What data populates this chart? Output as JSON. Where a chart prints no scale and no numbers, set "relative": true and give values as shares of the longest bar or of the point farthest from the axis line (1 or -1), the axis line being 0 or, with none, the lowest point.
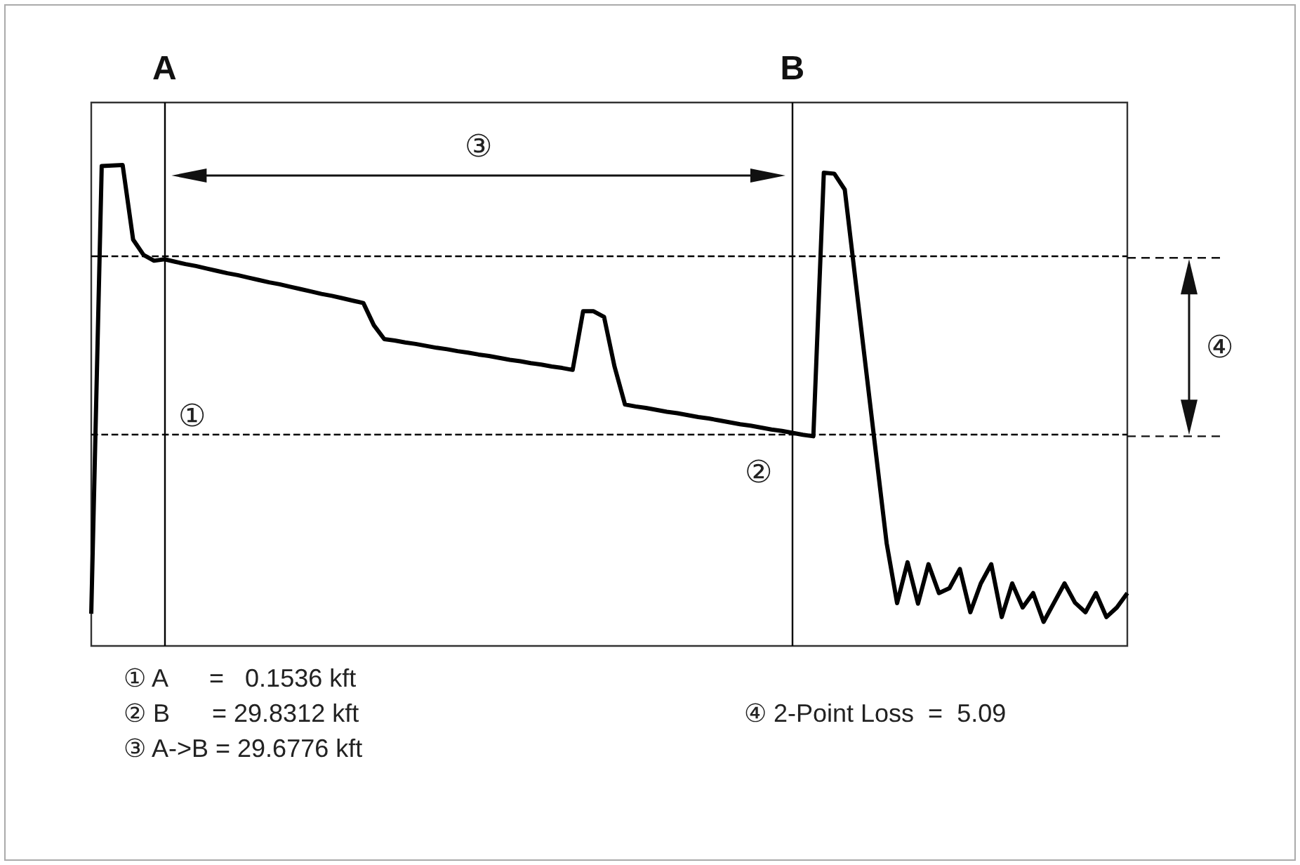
{
  "chart_data": {
    "type": "line",
    "relative": true,
    "tick_labels": "x",
    "marker": "none",
    "line_style": "solid",
    "categories": [
      null,
      null,
      null,
      null,
      null,
      null,
      null,
      "A",
      null,
      null,
      null,
      null,
      null,
      null,
      null,
      null,
      null,
      null,
      null,
      null,
      null,
      null,
      null,
      null,
      null,
      null,
      null,
      null,
      null,
      null,
      null,
      null,
      null,
      null,
      null,
      null,
      null,
      null,
      null,
      null,
      null,
      null,
      null,
      null,
      null,
      null,
      null,
      null,
      null,
      null,
      null,
      null,
      null,
      null,
      null,
      null,
      null,
      null,
      null,
      null,
      null,
      null,
      null,
      null,
      null,
      null,
      null,
      "B",
      null,
      null,
      null,
      null,
      null,
      null,
      null,
      null,
      null,
      null,
      null,
      null,
      null,
      null,
      null,
      null,
      null,
      null,
      null,
      null,
      null,
      null,
      null,
      null,
      null,
      null,
      null,
      null,
      null,
      null,
      null,
      null
    ],
    "series": [
      {
        "color": "#000000",
        "values": [
          0.067,
          0.998,
          0.999,
          1.0,
          0.845,
          0.813,
          0.801,
          0.804,
          0.799,
          0.794,
          0.79,
          0.785,
          0.78,
          0.775,
          0.771,
          0.766,
          0.761,
          0.756,
          0.752,
          0.747,
          0.742,
          0.737,
          0.732,
          0.728,
          0.723,
          0.718,
          0.713,
          0.667,
          0.638,
          0.635,
          0.631,
          0.628,
          0.624,
          0.62,
          0.617,
          0.613,
          0.61,
          0.606,
          0.603,
          0.599,
          0.595,
          0.592,
          0.588,
          0.585,
          0.581,
          0.578,
          0.574,
          0.696,
          0.696,
          0.684,
          0.581,
          0.502,
          0.498,
          0.495,
          0.491,
          0.487,
          0.484,
          0.48,
          0.476,
          0.473,
          0.469,
          0.465,
          0.461,
          0.458,
          0.454,
          0.45,
          0.447,
          0.443,
          0.439,
          0.436,
          0.984,
          0.982,
          0.949,
          0.765,
          0.581,
          0.397,
          0.214,
          0.089,
          0.174,
          0.088,
          0.17,
          0.11,
          0.12,
          0.16,
          0.07,
          0.13,
          0.17,
          0.06,
          0.13,
          0.08,
          0.11,
          0.05,
          0.09,
          0.13,
          0.09,
          0.07,
          0.11,
          0.06,
          0.08,
          0.11
        ]
      }
    ],
    "ref_lines": [
      {
        "axis": "x",
        "value": "A",
        "color": "#000000",
        "line_style": "solid"
      },
      {
        "axis": "x",
        "value": "B",
        "color": "#000000",
        "line_style": "solid"
      },
      {
        "axis": "y",
        "value": 0.807,
        "color": "#000000",
        "line_style": "dashed"
      },
      {
        "axis": "y",
        "value": 0.436,
        "color": "#000000",
        "line_style": "dashed"
      }
    ],
    "annotations": [
      "①",
      "②",
      "③",
      "④",
      "① A      =   0.1536 kft",
      "② B      = 29.8312 kft",
      "③ A->B = 29.6776 kft",
      "④ 2-Point Loss  =  5.09"
    ]
  }
}
